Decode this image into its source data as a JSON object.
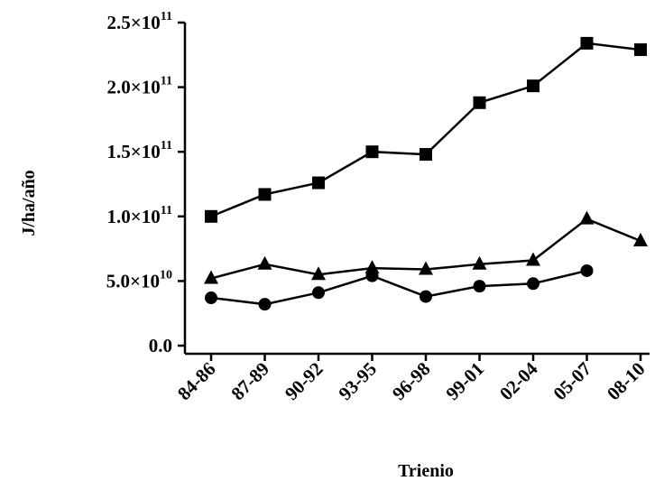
{
  "chart_data": {
    "type": "line",
    "title": "",
    "xlabel": "Trienio",
    "ylabel": "J/ha/año",
    "categories": [
      "84-86",
      "87-89",
      "90-92",
      "93-95",
      "96-98",
      "99-01",
      "02-04",
      "05-07",
      "08-10"
    ],
    "ylim": [
      0,
      250000000000
    ],
    "yticks": [
      {
        "value": 0,
        "mantissa": "0.0",
        "exp": ""
      },
      {
        "value": 50000000000,
        "mantissa": "5.0×10",
        "exp": "10"
      },
      {
        "value": 100000000000,
        "mantissa": "1.0×10",
        "exp": "11"
      },
      {
        "value": 150000000000,
        "mantissa": "1.5×10",
        "exp": "11"
      },
      {
        "value": 200000000000,
        "mantissa": "2.0×10",
        "exp": "11"
      },
      {
        "value": 250000000000,
        "mantissa": "2.5×10",
        "exp": "11"
      }
    ],
    "grid": false,
    "legend": "none",
    "series": [
      {
        "marker": "square",
        "color": "#000000",
        "values": [
          100000000000,
          117000000000,
          126000000000,
          150000000000,
          148000000000,
          188000000000,
          201000000000,
          234000000000,
          229000000000
        ]
      },
      {
        "marker": "triangle",
        "color": "#000000",
        "values": [
          52000000000,
          63000000000,
          55000000000,
          60000000000,
          59000000000,
          63000000000,
          66000000000,
          98000000000,
          81000000000
        ]
      },
      {
        "marker": "circle",
        "color": "#000000",
        "values": [
          37000000000,
          32000000000,
          41000000000,
          54000000000,
          38000000000,
          46000000000,
          48000000000,
          58000000000,
          null
        ]
      }
    ]
  }
}
